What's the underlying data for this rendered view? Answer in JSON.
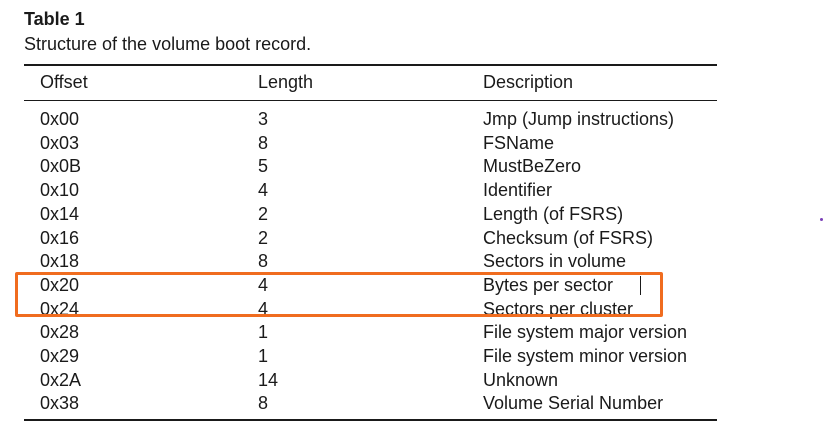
{
  "table": {
    "label": "Table 1",
    "caption": "Structure of the volume boot record.",
    "headers": {
      "offset": "Offset",
      "length": "Length",
      "description": "Description"
    },
    "rows": [
      {
        "offset": "0x00",
        "length": "3",
        "description": "Jmp (Jump instructions)"
      },
      {
        "offset": "0x03",
        "length": "8",
        "description": "FSName"
      },
      {
        "offset": "0x0B",
        "length": "5",
        "description": "MustBeZero"
      },
      {
        "offset": "0x10",
        "length": "4",
        "description": "Identifier"
      },
      {
        "offset": "0x14",
        "length": "2",
        "description": "Length (of FSRS)"
      },
      {
        "offset": "0x16",
        "length": "2",
        "description": "Checksum (of FSRS)"
      },
      {
        "offset": "0x18",
        "length": "8",
        "description": "Sectors in volume"
      },
      {
        "offset": "0x20",
        "length": "4",
        "description": "Bytes per sector"
      },
      {
        "offset": "0x24",
        "length": "4",
        "description": "Sectors per cluster"
      },
      {
        "offset": "0x28",
        "length": "1",
        "description": "File system major version"
      },
      {
        "offset": "0x29",
        "length": "1",
        "description": "File system minor version"
      },
      {
        "offset": "0x2A",
        "length": "14",
        "description": "Unknown"
      },
      {
        "offset": "0x38",
        "length": "8",
        "description": "Volume Serial Number"
      }
    ]
  },
  "highlight": {
    "color": "#f06c1f"
  }
}
